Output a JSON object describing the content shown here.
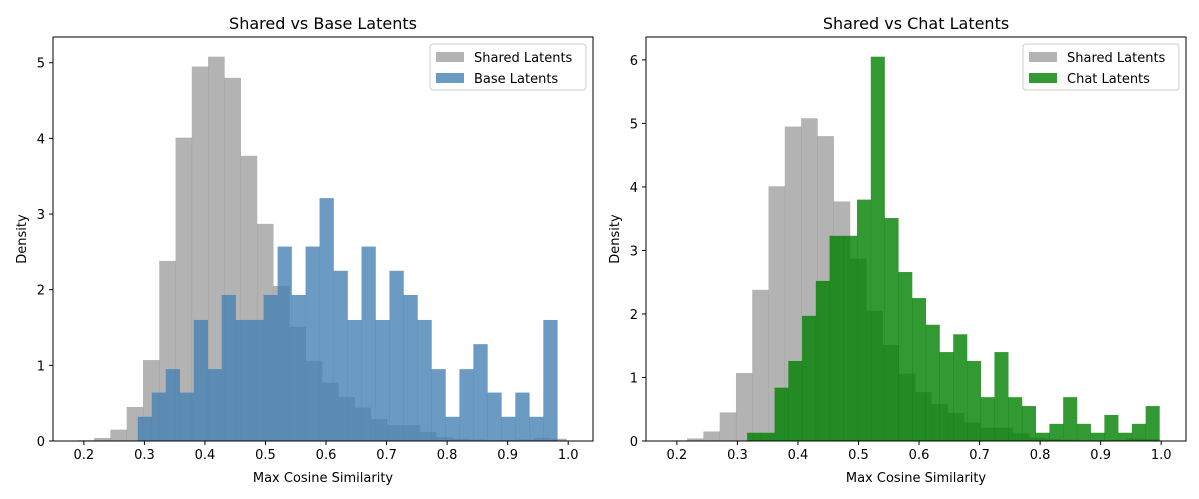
{
  "chart_data": [
    {
      "type": "bar",
      "subtype": "histogram",
      "title": "Shared vs Base Latents",
      "xlabel": "Max Cosine Similarity",
      "ylabel": "Density",
      "xlim": [
        0.149,
        1.041
      ],
      "ylim": [
        0,
        5.34
      ],
      "xticks": [
        "0.2",
        "0.3",
        "0.4",
        "0.5",
        "0.6",
        "0.7",
        "0.8",
        "0.9",
        "1.0"
      ],
      "yticks": [
        "0",
        "1",
        "2",
        "3",
        "4",
        "5"
      ],
      "legend_position": "top-right",
      "series": [
        {
          "name": "Shared Latents",
          "color": "#808080",
          "alpha": 0.6,
          "bin_start": 0.19,
          "bin_width": 0.0269,
          "values": [
            0.01,
            0.04,
            0.15,
            0.45,
            1.07,
            2.38,
            4.01,
            4.95,
            5.08,
            4.8,
            3.77,
            2.87,
            2.05,
            1.51,
            1.06,
            0.77,
            0.58,
            0.44,
            0.29,
            0.21,
            0.21,
            0.12,
            0.05,
            0.03,
            0.02,
            0.01,
            0.01,
            0.02,
            0.04,
            0.03
          ]
        },
        {
          "name": "Base Latents",
          "color": "#4682b4",
          "alpha": 0.8,
          "bin_start": 0.289,
          "bin_width": 0.0231,
          "values": [
            0.32,
            0.64,
            0.95,
            0.64,
            1.6,
            0.95,
            1.93,
            1.6,
            1.6,
            1.93,
            2.57,
            1.93,
            2.57,
            3.21,
            2.25,
            1.6,
            2.57,
            1.6,
            2.25,
            1.93,
            1.6,
            0.95,
            0.32,
            0.95,
            1.28,
            0.64,
            0.32,
            0.64,
            0.32,
            1.6
          ]
        }
      ]
    },
    {
      "type": "bar",
      "subtype": "histogram",
      "title": "Shared vs Chat Latents",
      "xlabel": "Max Cosine Similarity",
      "ylabel": "Density",
      "xlim": [
        0.149,
        1.041
      ],
      "ylim": [
        0,
        6.36
      ],
      "xticks": [
        "0.2",
        "0.3",
        "0.4",
        "0.5",
        "0.6",
        "0.7",
        "0.8",
        "0.9",
        "1.0"
      ],
      "yticks": [
        "0",
        "1",
        "2",
        "3",
        "4",
        "5",
        "6"
      ],
      "legend_position": "top-right",
      "series": [
        {
          "name": "Shared Latents",
          "color": "#808080",
          "alpha": 0.6,
          "bin_start": 0.19,
          "bin_width": 0.0269,
          "values": [
            0.01,
            0.04,
            0.15,
            0.45,
            1.07,
            2.38,
            4.01,
            4.95,
            5.08,
            4.8,
            3.77,
            2.87,
            2.05,
            1.51,
            1.06,
            0.77,
            0.58,
            0.44,
            0.29,
            0.21,
            0.21,
            0.12,
            0.05,
            0.03,
            0.02,
            0.01,
            0.01,
            0.02,
            0.04,
            0.03
          ]
        },
        {
          "name": "Chat Latents",
          "color": "#008000",
          "alpha": 0.8,
          "bin_start": 0.316,
          "bin_width": 0.0227,
          "values": [
            0.13,
            0.13,
            0.84,
            1.26,
            1.97,
            2.52,
            3.23,
            3.23,
            3.8,
            6.05,
            3.51,
            2.66,
            2.25,
            1.83,
            1.4,
            1.68,
            1.26,
            0.69,
            1.4,
            0.69,
            0.55,
            0.13,
            0.27,
            0.69,
            0.27,
            0.13,
            0.41,
            0.13,
            0.27,
            0.55
          ]
        }
      ]
    }
  ]
}
